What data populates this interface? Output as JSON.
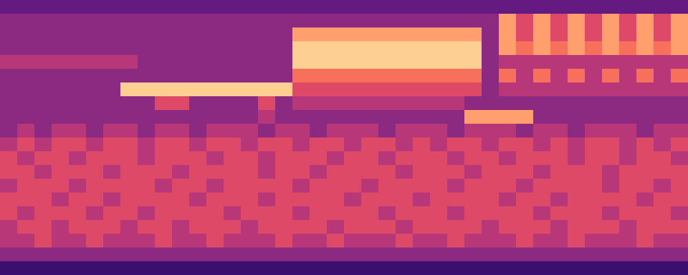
{
  "chart_data": {
    "type": "heatmap",
    "tick_labels": false,
    "zlim": [
      0,
      10
    ],
    "cells": [
      [
        3,
        3,
        3,
        3,
        3,
        3,
        3,
        3,
        3,
        3,
        3,
        3,
        3,
        3,
        3,
        3,
        3,
        3,
        3,
        3,
        3,
        3,
        3,
        3,
        3,
        3,
        3,
        3,
        3,
        3,
        3,
        3,
        3,
        3,
        3,
        3,
        3,
        3,
        3,
        3
      ],
      [
        4,
        4,
        4,
        4,
        4,
        4,
        4,
        4,
        4,
        4,
        4,
        4,
        4,
        4,
        4,
        4,
        4,
        4,
        4,
        4,
        4,
        4,
        4,
        4,
        4,
        4,
        4,
        4,
        4,
        8,
        6,
        8,
        6,
        8,
        6,
        8,
        6,
        8,
        6,
        8
      ],
      [
        4,
        4,
        4,
        4,
        4,
        4,
        4,
        4,
        4,
        4,
        4,
        4,
        4,
        4,
        4,
        4,
        4,
        8,
        8,
        8,
        8,
        8,
        8,
        8,
        8,
        8,
        8,
        8,
        4,
        8,
        6,
        8,
        6,
        8,
        6,
        8,
        6,
        8,
        6,
        8
      ],
      [
        4,
        4,
        4,
        4,
        4,
        4,
        4,
        4,
        4,
        4,
        4,
        4,
        4,
        4,
        4,
        4,
        4,
        9,
        9,
        9,
        9,
        9,
        9,
        9,
        9,
        9,
        9,
        9,
        4,
        8,
        7,
        8,
        7,
        8,
        7,
        8,
        7,
        8,
        7,
        8
      ],
      [
        5,
        5,
        5,
        5,
        5,
        5,
        5,
        5,
        4,
        4,
        4,
        4,
        4,
        4,
        4,
        4,
        4,
        9,
        9,
        9,
        9,
        9,
        9,
        9,
        9,
        9,
        9,
        9,
        4,
        5,
        5,
        5,
        5,
        5,
        5,
        5,
        5,
        5,
        5,
        5
      ],
      [
        4,
        4,
        4,
        4,
        4,
        4,
        4,
        4,
        4,
        4,
        4,
        4,
        4,
        4,
        4,
        4,
        4,
        7,
        7,
        7,
        7,
        7,
        7,
        7,
        7,
        7,
        7,
        7,
        4,
        7,
        5,
        7,
        5,
        7,
        5,
        7,
        5,
        7,
        5,
        7
      ],
      [
        4,
        4,
        4,
        4,
        4,
        4,
        4,
        9,
        9,
        9,
        9,
        9,
        9,
        9,
        9,
        9,
        9,
        6,
        6,
        6,
        6,
        6,
        6,
        6,
        6,
        6,
        6,
        6,
        4,
        5,
        5,
        5,
        5,
        5,
        5,
        5,
        5,
        5,
        5,
        5
      ],
      [
        4,
        4,
        4,
        4,
        4,
        4,
        4,
        4,
        4,
        6,
        6,
        4,
        4,
        4,
        4,
        6,
        4,
        5,
        5,
        5,
        5,
        5,
        5,
        5,
        5,
        5,
        5,
        4,
        4,
        4,
        4,
        4,
        4,
        4,
        4,
        4,
        4,
        4,
        4,
        4
      ],
      [
        4,
        4,
        4,
        4,
        4,
        4,
        4,
        4,
        4,
        4,
        4,
        4,
        4,
        4,
        4,
        5,
        4,
        4,
        4,
        4,
        4,
        4,
        4,
        4,
        4,
        4,
        4,
        8,
        8,
        8,
        8,
        4,
        4,
        4,
        4,
        4,
        4,
        4,
        4,
        4
      ],
      [
        4,
        5,
        4,
        5,
        5,
        4,
        5,
        5,
        4,
        5,
        5,
        4,
        5,
        5,
        5,
        4,
        5,
        5,
        4,
        5,
        5,
        5,
        4,
        5,
        5,
        5,
        4,
        5,
        5,
        5,
        4,
        5,
        5,
        4,
        5,
        5,
        5,
        4,
        5,
        5
      ],
      [
        5,
        6,
        5,
        6,
        6,
        5,
        6,
        6,
        5,
        6,
        6,
        5,
        6,
        6,
        5,
        6,
        6,
        5,
        6,
        6,
        5,
        6,
        6,
        5,
        6,
        5,
        6,
        6,
        5,
        6,
        6,
        5,
        6,
        5,
        6,
        6,
        5,
        6,
        5,
        6
      ],
      [
        6,
        5,
        6,
        6,
        5,
        6,
        6,
        6,
        5,
        6,
        6,
        6,
        5,
        6,
        6,
        5,
        6,
        6,
        6,
        5,
        6,
        6,
        5,
        6,
        6,
        6,
        5,
        6,
        6,
        5,
        6,
        6,
        6,
        5,
        6,
        6,
        5,
        6,
        6,
        5
      ],
      [
        6,
        6,
        5,
        6,
        6,
        6,
        5,
        6,
        6,
        6,
        5,
        6,
        6,
        6,
        6,
        5,
        6,
        6,
        5,
        6,
        6,
        6,
        6,
        5,
        6,
        6,
        6,
        5,
        6,
        6,
        6,
        5,
        6,
        6,
        6,
        5,
        6,
        6,
        6,
        6
      ],
      [
        5,
        6,
        6,
        6,
        5,
        6,
        6,
        6,
        6,
        5,
        6,
        6,
        5,
        6,
        6,
        6,
        6,
        5,
        6,
        6,
        6,
        5,
        6,
        6,
        6,
        6,
        5,
        6,
        6,
        6,
        5,
        6,
        6,
        6,
        6,
        5,
        6,
        6,
        5,
        6
      ],
      [
        6,
        6,
        6,
        5,
        6,
        6,
        5,
        6,
        6,
        6,
        6,
        5,
        6,
        6,
        6,
        5,
        6,
        6,
        6,
        6,
        5,
        6,
        6,
        6,
        5,
        6,
        6,
        6,
        6,
        5,
        6,
        6,
        5,
        6,
        6,
        6,
        6,
        5,
        6,
        6
      ],
      [
        6,
        5,
        6,
        6,
        6,
        5,
        6,
        6,
        5,
        6,
        6,
        6,
        6,
        5,
        6,
        6,
        6,
        5,
        6,
        6,
        6,
        6,
        5,
        6,
        6,
        6,
        5,
        6,
        6,
        6,
        6,
        5,
        6,
        6,
        6,
        5,
        6,
        6,
        6,
        5
      ],
      [
        5,
        6,
        6,
        5,
        6,
        6,
        6,
        5,
        6,
        6,
        5,
        6,
        6,
        6,
        5,
        6,
        6,
        6,
        6,
        5,
        6,
        6,
        6,
        5,
        6,
        6,
        6,
        6,
        5,
        6,
        6,
        6,
        5,
        6,
        6,
        6,
        5,
        6,
        6,
        6
      ],
      [
        5,
        5,
        6,
        5,
        5,
        6,
        5,
        5,
        5,
        6,
        5,
        5,
        6,
        5,
        5,
        5,
        6,
        5,
        5,
        6,
        5,
        5,
        5,
        6,
        5,
        5,
        6,
        5,
        5,
        5,
        6,
        5,
        5,
        6,
        5,
        5,
        5,
        6,
        5,
        5
      ],
      [
        4,
        4,
        4,
        4,
        4,
        4,
        4,
        4,
        4,
        4,
        4,
        4,
        4,
        4,
        4,
        4,
        4,
        4,
        4,
        4,
        4,
        4,
        4,
        4,
        4,
        4,
        4,
        4,
        4,
        4,
        4,
        4,
        4,
        4,
        4,
        4,
        4,
        4,
        4,
        4
      ],
      [
        2,
        2,
        2,
        2,
        2,
        2,
        2,
        2,
        2,
        2,
        2,
        2,
        2,
        2,
        2,
        2,
        2,
        2,
        2,
        2,
        2,
        2,
        2,
        2,
        2,
        2,
        2,
        2,
        2,
        2,
        2,
        2,
        2,
        2,
        2,
        2,
        2,
        2,
        2,
        2
      ]
    ]
  }
}
